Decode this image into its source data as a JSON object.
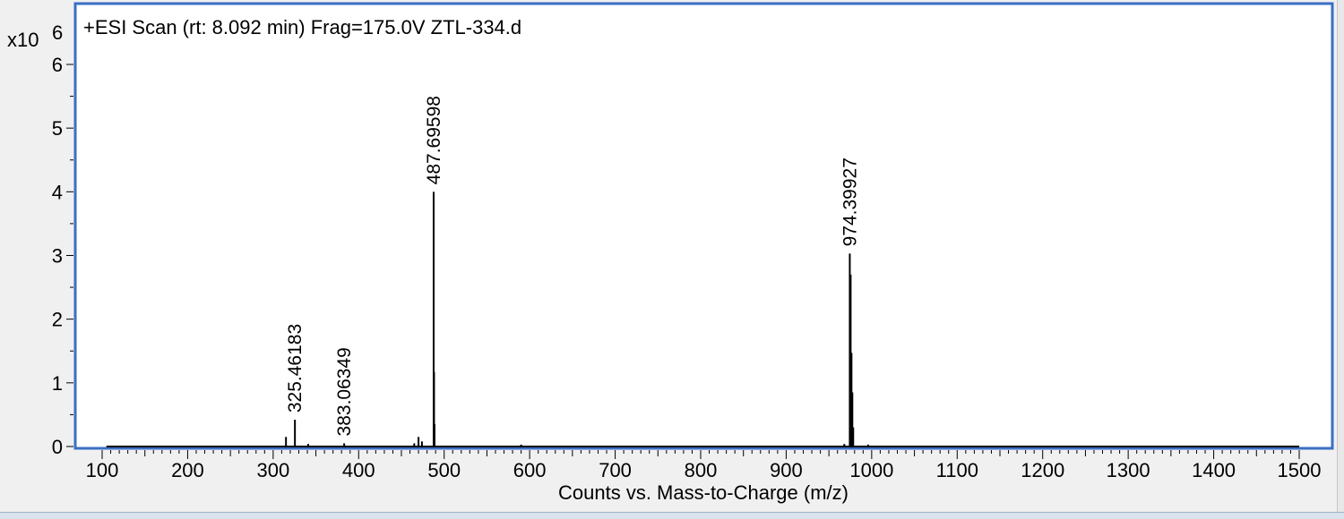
{
  "chart_data": {
    "type": "bar",
    "title": "+ESI Scan (rt: 8.092 min) Frag=175.0V ZTL-334.d",
    "xlabel": "Counts vs. Mass-to-Charge (m/z)",
    "ylabel": "",
    "y_multiplier": "x10",
    "y_exponent": "6",
    "xlim": [
      80,
      1520
    ],
    "ylim": [
      0,
      6.3
    ],
    "x_ticks": [
      100,
      200,
      300,
      400,
      500,
      600,
      700,
      800,
      900,
      1000,
      1100,
      1200,
      1300,
      1400,
      1500
    ],
    "y_ticks": [
      0,
      1,
      2,
      3,
      4,
      5,
      6
    ],
    "grid": false,
    "legend": "none",
    "baseline_range": [
      105,
      1500
    ],
    "peaks": [
      {
        "mz": 315,
        "intensity": 0.15
      },
      {
        "mz": 325.46183,
        "intensity": 0.42,
        "label": "325.46183"
      },
      {
        "mz": 341,
        "intensity": 0.04
      },
      {
        "mz": 383.06349,
        "intensity": 0.05,
        "label": "383.06349"
      },
      {
        "mz": 465,
        "intensity": 0.05
      },
      {
        "mz": 470,
        "intensity": 0.15
      },
      {
        "mz": 474,
        "intensity": 0.08
      },
      {
        "mz": 487.69598,
        "intensity": 4.0,
        "label": "487.69598"
      },
      {
        "mz": 488.2,
        "intensity": 1.17
      },
      {
        "mz": 488.7,
        "intensity": 0.35
      },
      {
        "mz": 590,
        "intensity": 0.03
      },
      {
        "mz": 968,
        "intensity": 0.04
      },
      {
        "mz": 974.39927,
        "intensity": 3.03,
        "label": "974.39927"
      },
      {
        "mz": 975.4,
        "intensity": 2.7
      },
      {
        "mz": 976.4,
        "intensity": 1.47
      },
      {
        "mz": 977.4,
        "intensity": 0.85
      },
      {
        "mz": 978.4,
        "intensity": 0.3
      },
      {
        "mz": 996,
        "intensity": 0.03
      }
    ]
  }
}
